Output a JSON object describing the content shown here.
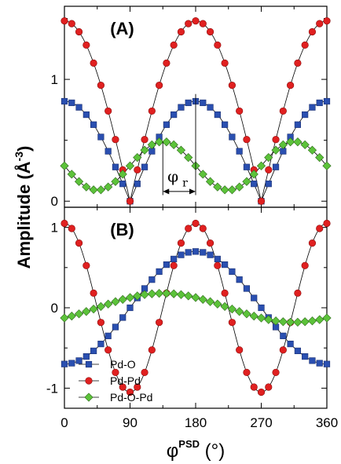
{
  "figure": {
    "ylabel": "Amplitude (Å",
    "ylabel_sup": "-3",
    "ylabel_close": ")",
    "xlabel_main": "φ",
    "xlabel_sup": "PSD",
    "xlabel_unit": "(°)"
  },
  "colors": {
    "Pd-O": "#2a4fb0",
    "Pd-Pd": "#e02020",
    "Pd-O-Pd": "#5cc23a"
  },
  "legend": {
    "placement": "bottom-left of panel B",
    "entries": [
      "Pd-O",
      "Pd-Pd",
      "Pd-O-Pd"
    ]
  },
  "annotation": {
    "symbol": "φ",
    "subscript": "r",
    "arrow_from_deg": 135,
    "arrow_to_deg": 180,
    "marker_lines_deg": [
      135,
      180
    ]
  },
  "chart_data": [
    {
      "type": "scatter",
      "panel_label": "(A)",
      "xlim": [
        0,
        360
      ],
      "ylim": [
        -0.05,
        1.6
      ],
      "xticks": [
        0,
        90,
        180,
        270,
        360
      ],
      "yticks": [
        0,
        1
      ],
      "ytick_labels": [
        "0",
        "1"
      ],
      "x_step": 10,
      "series": [
        {
          "name": "Pd-O",
          "marker": "square",
          "formula": "abs_cos",
          "amplitude": 0.82,
          "phase": 0,
          "offset": 0
        },
        {
          "name": "Pd-Pd",
          "marker": "circle",
          "formula": "abs_cos",
          "amplitude": 1.48,
          "phase": 0,
          "offset": 0
        },
        {
          "name": "Pd-O-Pd",
          "marker": "diamond",
          "formula": "cos2_shift",
          "amplitude": 0.2,
          "phase": 135,
          "offset": 0.29
        }
      ]
    },
    {
      "type": "scatter",
      "panel_label": "(B)",
      "xlim": [
        0,
        360
      ],
      "ylim": [
        -1.25,
        1.25
      ],
      "xticks": [
        0,
        90,
        180,
        270,
        360
      ],
      "xtick_labels": [
        "0",
        "90",
        "180",
        "270",
        "360"
      ],
      "yticks": [
        -1,
        0,
        1
      ],
      "ytick_labels": [
        "-1",
        "0",
        "1"
      ],
      "x_step": 10,
      "series": [
        {
          "name": "Pd-O",
          "marker": "square",
          "formula": "neg_cos",
          "amplitude": 0.7,
          "phase": 0,
          "offset": 0
        },
        {
          "name": "Pd-Pd",
          "marker": "circle",
          "formula": "cos2",
          "amplitude": 1.05,
          "phase": 0,
          "offset": 0
        },
        {
          "name": "Pd-O-Pd",
          "marker": "diamond",
          "formula": "cos_shift",
          "amplitude": 0.18,
          "phase": 135,
          "offset": 0
        }
      ]
    }
  ]
}
